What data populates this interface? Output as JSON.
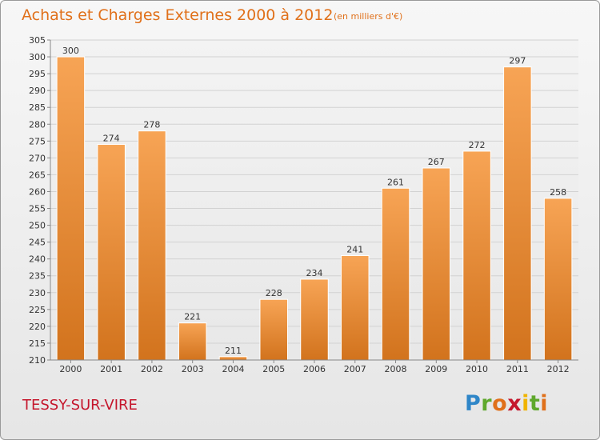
{
  "title": "Achats et Charges Externes 2000 à 2012",
  "subtitle": "(en milliers d'€)",
  "place": "TESSY-SUR-VIRE",
  "brand": "Proxiti",
  "colors": {
    "accent": "#e0701a",
    "bar_top": "#f7a455",
    "bar_bottom": "#d2731d",
    "place": "#c5162c"
  },
  "chart_data": {
    "type": "bar",
    "title": "Achats et Charges Externes 2000 à 2012",
    "subtitle": "(en milliers d'€)",
    "categories": [
      "2000",
      "2001",
      "2002",
      "2003",
      "2004",
      "2005",
      "2006",
      "2007",
      "2008",
      "2009",
      "2010",
      "2011",
      "2012"
    ],
    "values": [
      300,
      274,
      278,
      221,
      211,
      228,
      234,
      241,
      261,
      267,
      272,
      297,
      258
    ],
    "ylim": [
      210,
      305
    ],
    "yticks": [
      210,
      215,
      220,
      225,
      230,
      235,
      240,
      245,
      250,
      255,
      260,
      265,
      270,
      275,
      280,
      285,
      290,
      295,
      300,
      305
    ],
    "grid": true,
    "xlabel": "",
    "ylabel": ""
  }
}
